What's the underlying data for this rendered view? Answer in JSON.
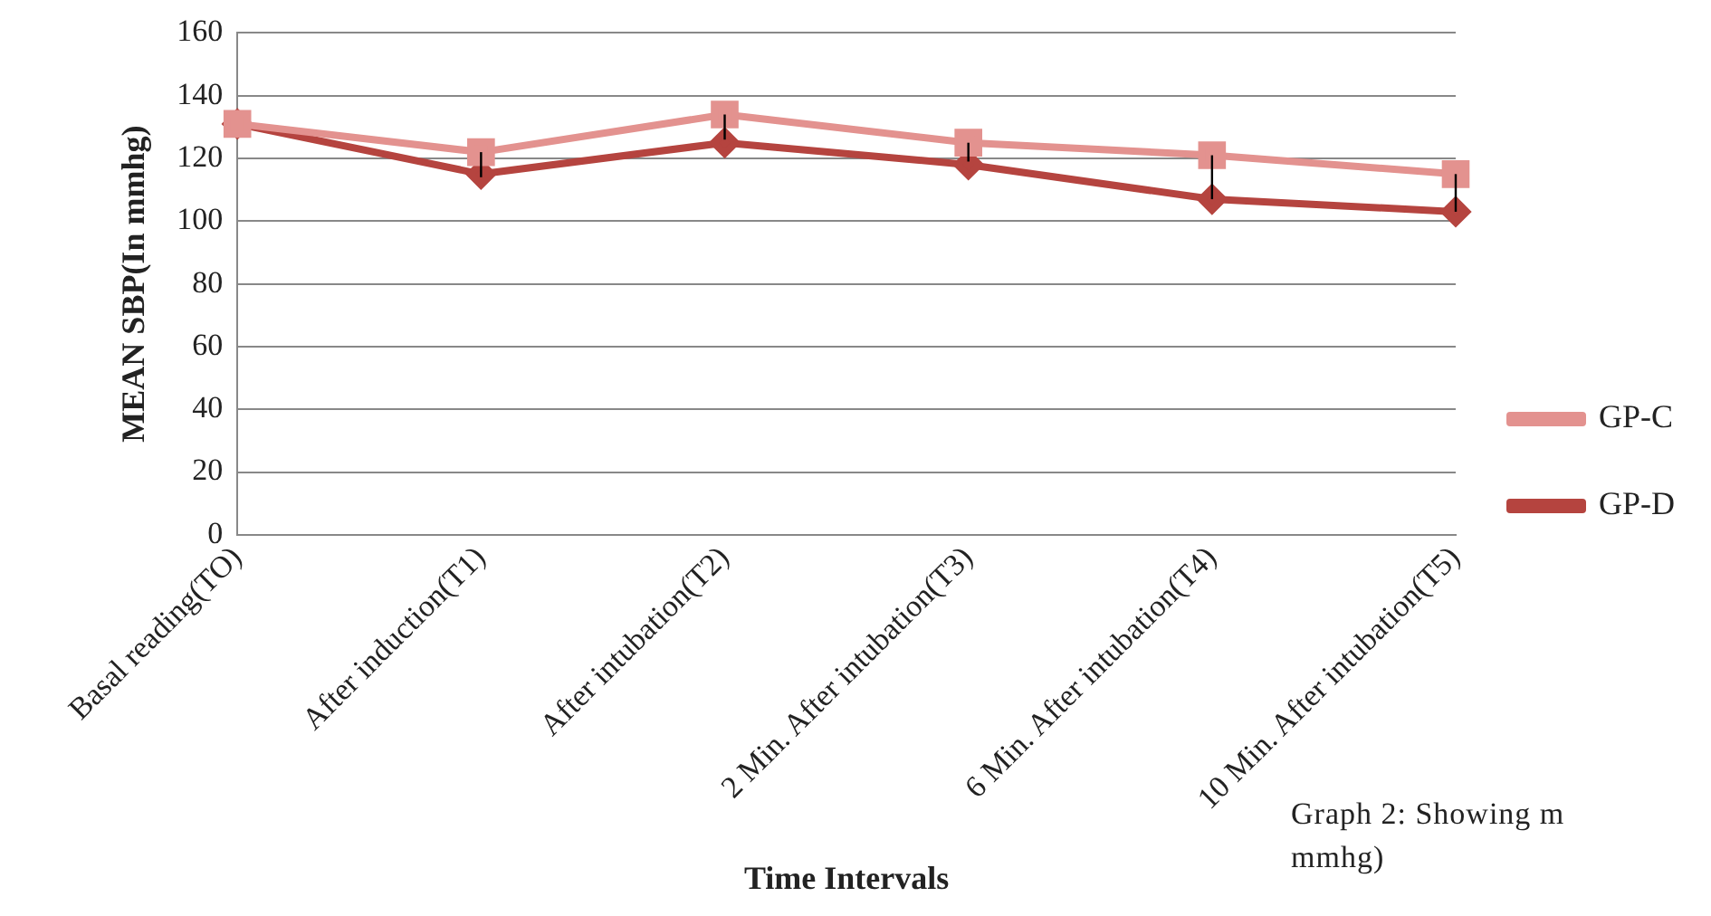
{
  "chart_data": {
    "type": "line",
    "xlabel": "Time Intervals",
    "ylabel": "MEAN SBP(In mmhg)",
    "categories": [
      "Basal reading(TO)",
      "After induction(T1)",
      "After intubation(T2)",
      "2 Min. After intubation(T3)",
      "6 Min. After intubation(T4)",
      "10 Min. After intubation(T5)"
    ],
    "series": [
      {
        "name": "GP-D",
        "color": "#b5443f",
        "marker": "diamond",
        "values": [
          131,
          115,
          125,
          118,
          107,
          103
        ]
      },
      {
        "name": "GP-C",
        "color": "#e3928f",
        "marker": "square",
        "values": [
          131,
          122,
          134,
          125,
          121,
          115
        ],
        "errors": [
          null,
          [
            114,
            122
          ],
          [
            126,
            134
          ],
          [
            119,
            125
          ],
          [
            107,
            121
          ],
          [
            103,
            115
          ]
        ]
      }
    ],
    "ylim": [
      0,
      160
    ],
    "yticks": [
      0,
      20,
      40,
      60,
      80,
      100,
      120,
      140,
      160
    ],
    "grid": "y",
    "legend": "right",
    "line_style": "solid",
    "annotations": [
      "Graph 2: Showing m",
      "mmhg)"
    ]
  }
}
